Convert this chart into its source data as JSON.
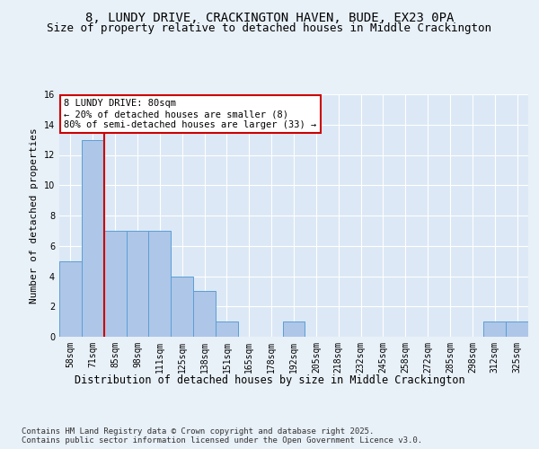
{
  "title1": "8, LUNDY DRIVE, CRACKINGTON HAVEN, BUDE, EX23 0PA",
  "title2": "Size of property relative to detached houses in Middle Crackington",
  "xlabel": "Distribution of detached houses by size in Middle Crackington",
  "ylabel": "Number of detached properties",
  "categories": [
    "58sqm",
    "71sqm",
    "85sqm",
    "98sqm",
    "111sqm",
    "125sqm",
    "138sqm",
    "151sqm",
    "165sqm",
    "178sqm",
    "192sqm",
    "205sqm",
    "218sqm",
    "232sqm",
    "245sqm",
    "258sqm",
    "272sqm",
    "285sqm",
    "298sqm",
    "312sqm",
    "325sqm"
  ],
  "values": [
    5,
    13,
    7,
    7,
    7,
    4,
    3,
    1,
    0,
    0,
    1,
    0,
    0,
    0,
    0,
    0,
    0,
    0,
    0,
    1,
    1
  ],
  "bar_color": "#aec6e8",
  "bar_edge_color": "#5a9fd4",
  "background_color": "#dce8f5",
  "fig_background_color": "#e8f0f8",
  "grid_color": "#ffffff",
  "annotation_box_text": "8 LUNDY DRIVE: 80sqm\n← 20% of detached houses are smaller (8)\n80% of semi-detached houses are larger (33) →",
  "red_line_index": 1.5,
  "annotation_box_color": "#ffffff",
  "annotation_box_edge": "#cc0000",
  "ylim": [
    0,
    16
  ],
  "yticks": [
    0,
    2,
    4,
    6,
    8,
    10,
    12,
    14,
    16
  ],
  "footer": "Contains HM Land Registry data © Crown copyright and database right 2025.\nContains public sector information licensed under the Open Government Licence v3.0.",
  "title1_fontsize": 10,
  "title2_fontsize": 9,
  "xlabel_fontsize": 8.5,
  "ylabel_fontsize": 8,
  "tick_fontsize": 7,
  "footer_fontsize": 6.5,
  "ann_fontsize": 7.5
}
